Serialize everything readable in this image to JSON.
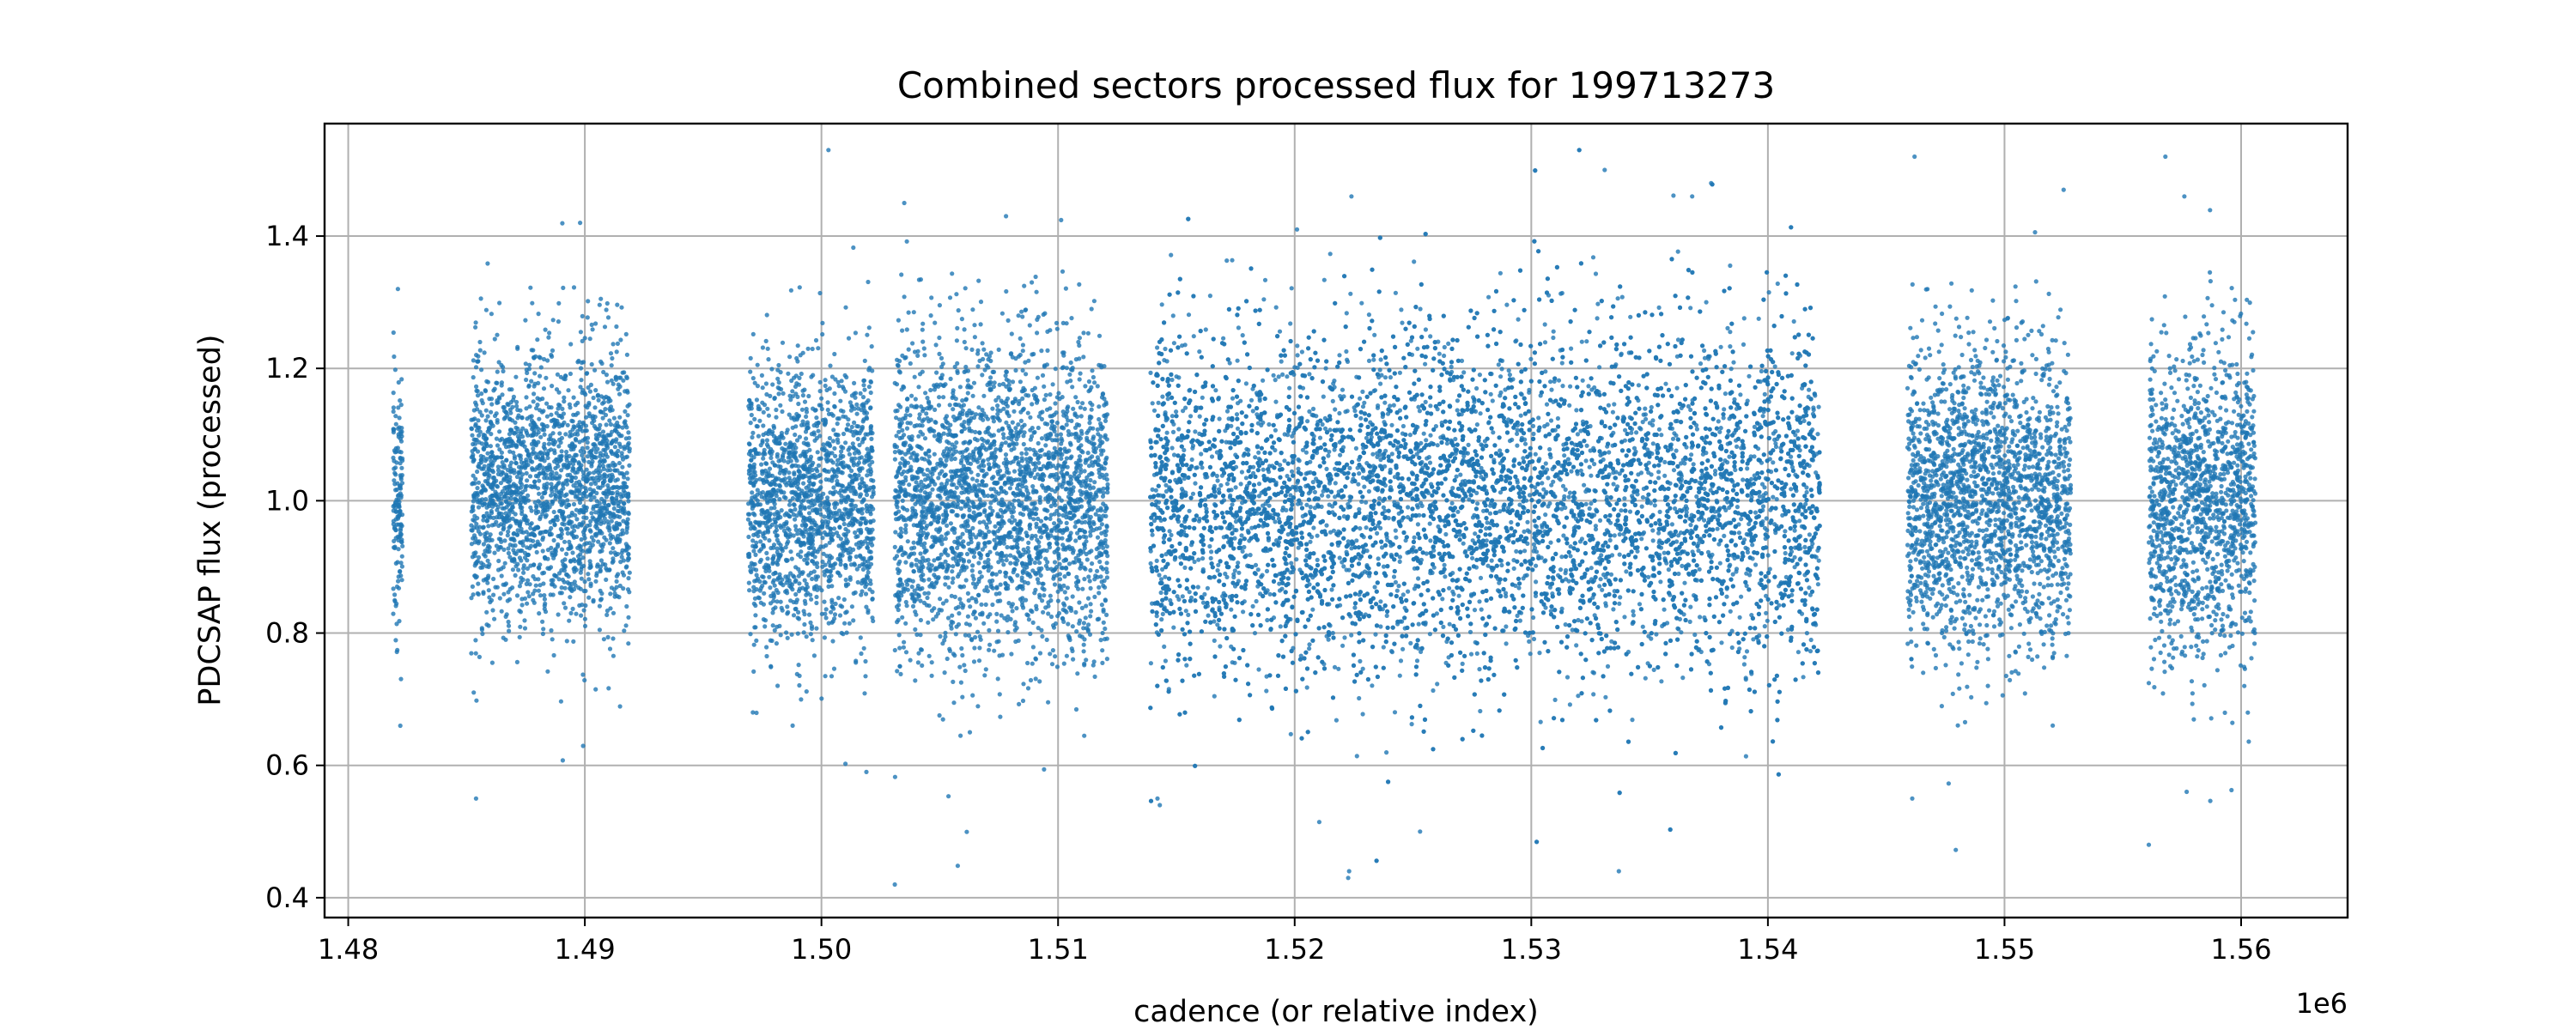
{
  "chart_data": {
    "type": "scatter",
    "title": "Combined sectors processed flux for 199713273",
    "xlabel": "cadence (or relative index)",
    "ylabel": "PDCSAP flux (processed)",
    "x_offset_label": "1e6",
    "xlim": [
      1479000,
      1564500
    ],
    "ylim": [
      0.37,
      1.57
    ],
    "grid": true,
    "legend": "none",
    "marker_color": "#1f77b4",
    "x_ticks": [
      1480000,
      1490000,
      1500000,
      1510000,
      1520000,
      1530000,
      1540000,
      1550000,
      1560000
    ],
    "x_tick_labels": [
      "1.48",
      "1.49",
      "1.50",
      "1.51",
      "1.52",
      "1.53",
      "1.54",
      "1.55",
      "1.56"
    ],
    "y_ticks": [
      0.4,
      0.6,
      0.8,
      1.0,
      1.2,
      1.4
    ],
    "y_tick_labels": [
      "0.4",
      "0.6",
      "0.8",
      "1.0",
      "1.2",
      "1.4"
    ],
    "segments": [
      {
        "x_start": 1481900,
        "x_end": 1482300,
        "median": 1.0,
        "spread": 0.085
      },
      {
        "x_start": 1485200,
        "x_end": 1491900,
        "median": 1.02,
        "spread": 0.1
      },
      {
        "x_start": 1496900,
        "x_end": 1502200,
        "median": 1.0,
        "spread": 0.1
      },
      {
        "x_start": 1503100,
        "x_end": 1512100,
        "median": 1.0,
        "spread": 0.115
      },
      {
        "x_start": 1513900,
        "x_end": 1542200,
        "median": 1.0,
        "spread": 0.125
      },
      {
        "x_start": 1545900,
        "x_end": 1552800,
        "median": 1.0,
        "spread": 0.11
      },
      {
        "x_start": 1556100,
        "x_end": 1560600,
        "median": 1.0,
        "spread": 0.11
      }
    ],
    "outliers": [
      {
        "x": 1482100,
        "y": 1.32
      },
      {
        "x": 1482200,
        "y": 0.66
      },
      {
        "x": 1485400,
        "y": 0.55
      },
      {
        "x": 1489800,
        "y": 1.42
      },
      {
        "x": 1497100,
        "y": 0.68
      },
      {
        "x": 1501900,
        "y": 0.59
      },
      {
        "x": 1503100,
        "y": 0.42
      },
      {
        "x": 1503500,
        "y": 1.45
      },
      {
        "x": 1507800,
        "y": 1.43
      },
      {
        "x": 1514200,
        "y": 0.55
      },
      {
        "x": 1514300,
        "y": 0.54
      },
      {
        "x": 1520100,
        "y": 1.41
      },
      {
        "x": 1522300,
        "y": 0.44
      },
      {
        "x": 1522400,
        "y": 1.46
      },
      {
        "x": 1525300,
        "y": 0.5
      },
      {
        "x": 1533100,
        "y": 1.5
      },
      {
        "x": 1533700,
        "y": 0.44
      },
      {
        "x": 1536800,
        "y": 1.46
      },
      {
        "x": 1537600,
        "y": 1.48
      },
      {
        "x": 1546200,
        "y": 1.52
      },
      {
        "x": 1546100,
        "y": 0.55
      },
      {
        "x": 1552500,
        "y": 1.47
      },
      {
        "x": 1556100,
        "y": 0.48
      },
      {
        "x": 1556800,
        "y": 1.52
      },
      {
        "x": 1557600,
        "y": 1.46
      },
      {
        "x": 1557700,
        "y": 0.56
      }
    ]
  }
}
